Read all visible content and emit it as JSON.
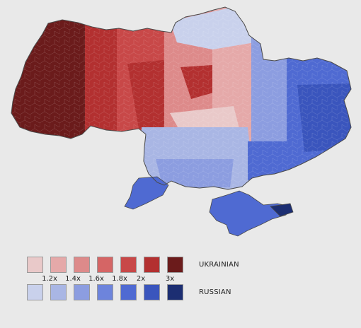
{
  "map": {
    "topic": "ukrainian-vs-russian-ratio-by-district",
    "colors": {
      "ukrainian_scale": [
        "#e9c9c9",
        "#e5a9a9",
        "#dd8a8a",
        "#d56565",
        "#c84848",
        "#b33030",
        "#6b1b1b"
      ],
      "russian_scale": [
        "#c9d1ec",
        "#a9b6e4",
        "#8c9de0",
        "#6d84dc",
        "#4f6ad2",
        "#3a55bd",
        "#1c2e72"
      ],
      "border": "#5a5a5a",
      "background": "#e9e9e9"
    }
  },
  "legend": {
    "ukrainian_label": "UKRAINIAN",
    "russian_label": "RUSSIAN",
    "ticks": [
      "1.2x",
      "1.4x",
      "1.6x",
      "1.8x",
      "2x",
      "3x"
    ]
  }
}
